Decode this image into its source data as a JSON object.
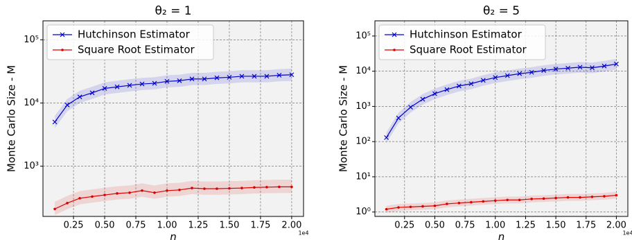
{
  "chart_data": [
    {
      "type": "line",
      "title": "θ₂ = 1",
      "xlabel": "n",
      "ylabel": "Monte Carlo Size - M",
      "x_offset_label": "1e4",
      "yscale": "log",
      "grid": true,
      "legend": "upper left",
      "x": [
        0.1,
        0.2,
        0.3,
        0.4,
        0.5,
        0.6,
        0.7,
        0.8,
        0.9,
        1.0,
        1.1,
        1.2,
        1.3,
        1.4,
        1.5,
        1.6,
        1.7,
        1.8,
        1.9,
        2.0
      ],
      "xlim": [
        0.005,
        2.095
      ],
      "xticks": [
        0.25,
        {
          "value": 0.5,
          "label": "0.50"
        },
        0.75,
        {
          "value": 1,
          "label": "1.00"
        },
        1.25,
        {
          "value": 1.5,
          "label": "1.50"
        },
        1.75,
        {
          "value": 2,
          "label": "2.00"
        }
      ],
      "ylim": [
        160,
        200000
      ],
      "yticks": [
        {
          "value": 1000,
          "label": "10³"
        },
        {
          "value": 10000,
          "label": "10⁴"
        },
        {
          "value": 100000,
          "label": "10⁵"
        }
      ],
      "series": [
        {
          "name": "Hutchinson Estimator",
          "color": "#0000cc",
          "marker": "x",
          "values": [
            5000,
            9300,
            12500,
            14500,
            17000,
            18000,
            19000,
            20000,
            20500,
            22000,
            22500,
            24000,
            24000,
            25000,
            25500,
            26500,
            26500,
            26500,
            27500,
            28000
          ],
          "lower": [
            4000,
            7400,
            10000,
            11600,
            13600,
            14400,
            15200,
            16000,
            16400,
            17600,
            18000,
            19200,
            19200,
            20000,
            20400,
            21200,
            21200,
            21200,
            22000,
            22400
          ],
          "upper": [
            6250,
            11600,
            15600,
            18100,
            21200,
            22500,
            23800,
            25000,
            25600,
            27500,
            28100,
            30000,
            30000,
            31200,
            31900,
            33100,
            33100,
            33100,
            34400,
            35000
          ]
        },
        {
          "name": "Square Root Estimator",
          "color": "#dd0000",
          "marker": "o",
          "values": [
            210,
            260,
            310,
            330,
            350,
            370,
            380,
            410,
            380,
            410,
            420,
            450,
            440,
            440,
            445,
            450,
            460,
            465,
            470,
            470
          ],
          "lower": [
            168,
            208,
            248,
            264,
            280,
            296,
            304,
            328,
            304,
            328,
            336,
            360,
            352,
            352,
            356,
            360,
            368,
            372,
            376,
            376
          ],
          "upper": [
            273,
            338,
            403,
            429,
            455,
            481,
            494,
            533,
            494,
            533,
            546,
            585,
            572,
            572,
            579,
            585,
            598,
            605,
            611,
            611
          ]
        }
      ]
    },
    {
      "type": "line",
      "title": "θ₂ = 5",
      "xlabel": "n",
      "ylabel": "Monte Carlo Size - M",
      "x_offset_label": "1e4",
      "yscale": "log",
      "grid": true,
      "legend": "upper left",
      "x": [
        0.1,
        0.2,
        0.3,
        0.4,
        0.5,
        0.6,
        0.7,
        0.8,
        0.9,
        1.0,
        1.1,
        1.2,
        1.3,
        1.4,
        1.5,
        1.6,
        1.7,
        1.8,
        1.9,
        2.0
      ],
      "xlim": [
        0.005,
        2.095
      ],
      "xticks": [
        0.25,
        {
          "value": 0.5,
          "label": "0.50"
        },
        0.75,
        {
          "value": 1,
          "label": "1.00"
        },
        1.25,
        {
          "value": 1.5,
          "label": "1.50"
        },
        1.75,
        {
          "value": 2,
          "label": "2.00"
        }
      ],
      "ylim": [
        0.75,
        270000
      ],
      "yticks": [
        {
          "value": 1,
          "label": "10⁰"
        },
        {
          "value": 10,
          "label": "10¹"
        },
        {
          "value": 100,
          "label": "10²"
        },
        {
          "value": 1000,
          "label": "10³"
        },
        {
          "value": 10000,
          "label": "10⁴"
        },
        {
          "value": 100000,
          "label": "10⁵"
        }
      ],
      "series": [
        {
          "name": "Hutchinson Estimator",
          "color": "#0000cc",
          "marker": "x",
          "values": [
            130,
            470,
            950,
            1600,
            2300,
            3000,
            3800,
            4400,
            5500,
            6600,
            7500,
            8500,
            9300,
            10500,
            11500,
            12200,
            13000,
            12500,
            14000,
            16000
          ],
          "lower": [
            91,
            329,
            665,
            1120,
            1610,
            2100,
            2660,
            3080,
            3850,
            4620,
            5250,
            5950,
            6510,
            7350,
            8050,
            8540,
            9100,
            8750,
            9800,
            11200
          ],
          "upper": [
            182,
            658,
            1330,
            2240,
            3220,
            4200,
            5320,
            6160,
            7700,
            9240,
            10500,
            11900,
            13020,
            14700,
            16100,
            17080,
            18200,
            17500,
            19600,
            22400
          ]
        },
        {
          "name": "Square Root Estimator",
          "color": "#dd0000",
          "marker": "o",
          "values": [
            1.2,
            1.35,
            1.4,
            1.45,
            1.5,
            1.7,
            1.8,
            1.9,
            2.0,
            2.1,
            2.2,
            2.2,
            2.35,
            2.4,
            2.5,
            2.6,
            2.6,
            2.7,
            2.8,
            3.0
          ],
          "lower": [
            0.96,
            1.08,
            1.12,
            1.16,
            1.2,
            1.36,
            1.44,
            1.52,
            1.6,
            1.68,
            1.76,
            1.76,
            1.88,
            1.92,
            2,
            2.08,
            2.08,
            2.16,
            2.24,
            2.4
          ],
          "upper": [
            1.5,
            1.69,
            1.75,
            1.81,
            1.88,
            2.13,
            2.25,
            2.38,
            2.5,
            2.63,
            2.75,
            2.75,
            2.94,
            3,
            3.13,
            3.25,
            3.25,
            3.38,
            3.5,
            3.75
          ]
        }
      ]
    }
  ]
}
